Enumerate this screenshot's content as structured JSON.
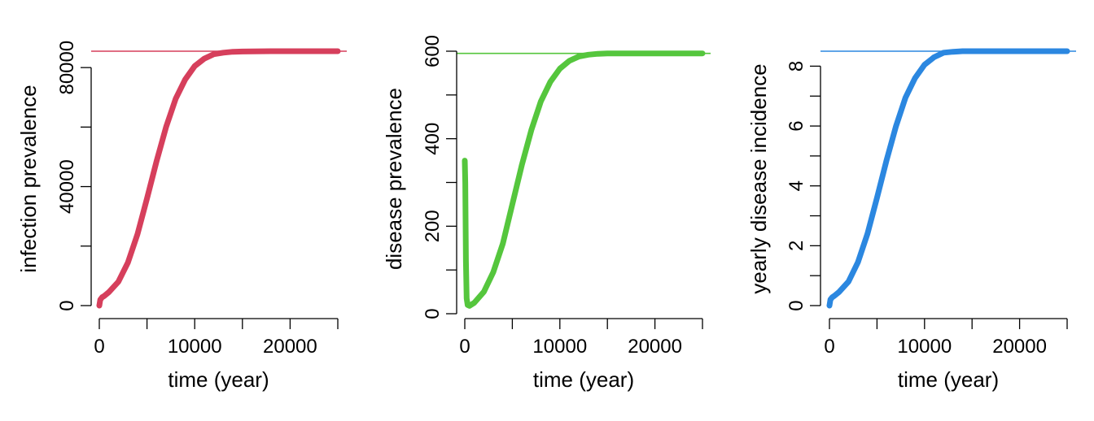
{
  "chart_data": [
    {
      "type": "line",
      "xlabel": "time (year)",
      "ylabel": "infection prevalence",
      "xticks": [
        0,
        10000,
        20000
      ],
      "xminor": [
        5000,
        15000,
        25000
      ],
      "xlim": [
        -1000,
        25000
      ],
      "yticks": [
        0,
        40000,
        80000
      ],
      "yminor": [
        20000,
        60000
      ],
      "ylim": [
        0,
        85500
      ],
      "ytick_labels": [
        "0",
        "40000",
        "80000"
      ],
      "color": "#d63f5c",
      "equilibrium": 85500,
      "series": [
        {
          "x": [
            0,
            100,
            300,
            500,
            1000,
            2000,
            3000,
            4000,
            5000,
            6000,
            7000,
            8000,
            9000,
            10000,
            11000,
            12000,
            13000,
            14000,
            15000,
            16000,
            18000,
            20000,
            22000,
            25000
          ],
          "y": [
            0,
            2000,
            2800,
            3200,
            4500,
            8000,
            14500,
            24000,
            36000,
            48500,
            60000,
            69500,
            76000,
            80500,
            83000,
            84500,
            85000,
            85300,
            85400,
            85450,
            85500,
            85500,
            85500,
            85500
          ]
        }
      ]
    },
    {
      "type": "line",
      "xlabel": "time (year)",
      "ylabel": "disease prevalence",
      "xticks": [
        0,
        10000,
        20000
      ],
      "xminor": [
        5000,
        15000,
        25000
      ],
      "xlim": [
        -1000,
        25000
      ],
      "yticks": [
        0,
        200,
        400,
        600
      ],
      "yminor": [
        100,
        300,
        500
      ],
      "ylim": [
        0,
        600
      ],
      "ytick_labels": [
        "0",
        "200",
        "400",
        "600"
      ],
      "color": "#55c63d",
      "equilibrium": 595,
      "series": [
        {
          "x": [
            0,
            50,
            120,
            200,
            300,
            500,
            1000,
            2000,
            3000,
            4000,
            5000,
            6000,
            7000,
            8000,
            9000,
            10000,
            11000,
            12000,
            13000,
            14000,
            15000,
            16000,
            18000,
            20000,
            22000,
            25000
          ],
          "y": [
            350,
            300,
            120,
            35,
            20,
            18,
            25,
            50,
            95,
            160,
            250,
            340,
            420,
            485,
            530,
            560,
            578,
            588,
            592,
            594,
            595,
            595,
            595,
            595,
            595,
            595
          ]
        }
      ]
    },
    {
      "type": "line",
      "xlabel": "time (year)",
      "ylabel": "yearly disease incidence",
      "xticks": [
        0,
        10000,
        20000
      ],
      "xminor": [
        5000,
        15000,
        25000
      ],
      "xlim": [
        -1000,
        25000
      ],
      "yticks": [
        0,
        2,
        4,
        6,
        8
      ],
      "yminor": [
        1,
        3,
        5,
        7
      ],
      "ylim": [
        0,
        8.5
      ],
      "ytick_labels": [
        "0",
        "2",
        "4",
        "6",
        "8"
      ],
      "color": "#2b87e0",
      "equilibrium": 8.5,
      "series": [
        {
          "x": [
            0,
            100,
            300,
            500,
            1000,
            2000,
            3000,
            4000,
            5000,
            6000,
            7000,
            8000,
            9000,
            10000,
            11000,
            12000,
            13000,
            14000,
            15000,
            16000,
            18000,
            20000,
            22000,
            25000
          ],
          "y": [
            0,
            0.2,
            0.28,
            0.32,
            0.45,
            0.8,
            1.45,
            2.4,
            3.6,
            4.85,
            6.0,
            6.95,
            7.6,
            8.05,
            8.3,
            8.45,
            8.48,
            8.5,
            8.5,
            8.5,
            8.5,
            8.5,
            8.5,
            8.5
          ]
        }
      ]
    }
  ]
}
